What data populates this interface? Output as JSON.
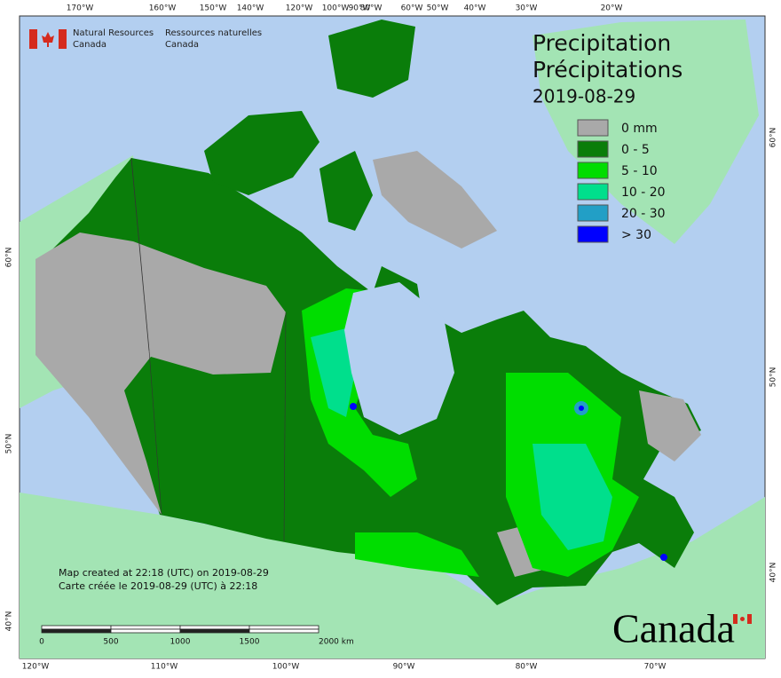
{
  "header": {
    "nrcan_en": [
      "Natural Resources",
      "Canada"
    ],
    "nrcan_fr": [
      "Ressources naturelles",
      "Canada"
    ]
  },
  "title": {
    "en": "Precipitation",
    "fr": "Précipitations",
    "date": "2019-08-29"
  },
  "legend": {
    "items": [
      {
        "color": "#a9a9a9",
        "label": "0 mm"
      },
      {
        "color": "#0a7d0a",
        "label": "0 - 5"
      },
      {
        "color": "#00dd00",
        "label": "5 - 10"
      },
      {
        "color": "#00df8c",
        "label": "10 - 20"
      },
      {
        "color": "#229fc6",
        "label": "20 - 30"
      },
      {
        "color": "#0000ff",
        "label": "> 30"
      }
    ]
  },
  "graticule": {
    "top": [
      "170°W",
      "160°W",
      "150°W",
      "140°W",
      "120°W",
      "100°W",
      "90°W",
      "80°W",
      "60°W",
      "50°W",
      "40°W",
      "30°W",
      "20°W"
    ],
    "bottom": [
      "120°W",
      "110°W",
      "100°W",
      "90°W",
      "80°W",
      "70°W"
    ],
    "left": [
      "60°N",
      "50°N",
      "40°N"
    ],
    "right": [
      "60°N",
      "50°N",
      "40°N"
    ]
  },
  "footer": {
    "lines": [
      "Map created at 22:18 (UTC) on 2019-08-29",
      "Carte créée le 2019-08-29 (UTC) à 22:18"
    ]
  },
  "scale_bar": {
    "labels": [
      "0",
      "500",
      "1000",
      "1500",
      "2000 km"
    ]
  },
  "wordmark": "Canada"
}
